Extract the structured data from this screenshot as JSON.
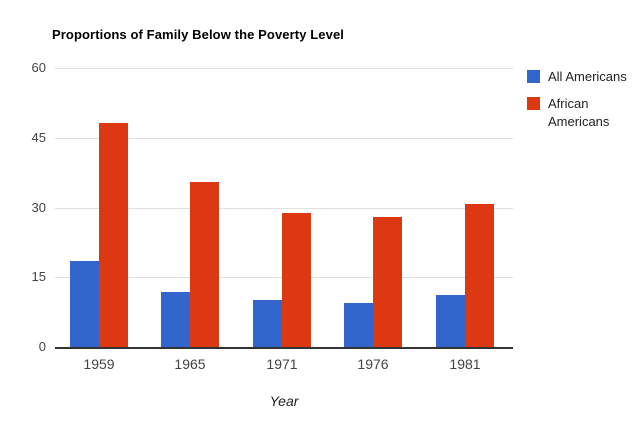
{
  "chart_data": {
    "type": "bar",
    "title": "Proportions of Family Below the Poverty Level",
    "categories": [
      "1959",
      "1965",
      "1971",
      "1976",
      "1981"
    ],
    "series": [
      {
        "name": "All Americans",
        "color": "#3366CC",
        "values": [
          18.5,
          11.8,
          10.0,
          9.4,
          11.2
        ]
      },
      {
        "name": "African Americans",
        "color": "#DC3912",
        "values": [
          48.1,
          35.5,
          28.8,
          28.0,
          30.8
        ]
      }
    ],
    "xlabel": "Year",
    "ylabel": "",
    "ylim": [
      0,
      60
    ],
    "yticks": [
      0,
      15,
      30,
      45,
      60
    ],
    "grid": true,
    "legend_position": "right"
  },
  "colors": {
    "background": "#ffffff",
    "gridline": "#e0e0e0",
    "axis_line": "#333333",
    "tick_label": "#444444",
    "title_text": "#000000"
  }
}
